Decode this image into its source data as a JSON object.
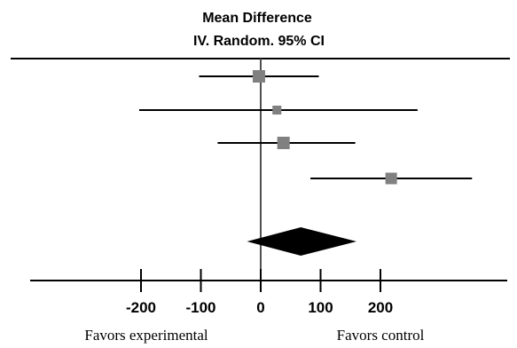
{
  "chart_data": {
    "type": "forest",
    "header_line1": "Mean Difference",
    "header_line2": "IV. Random. 95% CI",
    "xlim": [
      -260,
      340
    ],
    "ticks": [
      {
        "value": -200,
        "label": "-200"
      },
      {
        "value": -100,
        "label": "-100"
      },
      {
        "value": 0,
        "label": "0"
      },
      {
        "value": 100,
        "label": "100"
      },
      {
        "value": 200,
        "label": "200"
      }
    ],
    "studies": [
      {
        "mean": -3,
        "lower": -103,
        "upper": 97,
        "weight": "large"
      },
      {
        "mean": 27,
        "lower": -203,
        "upper": 262,
        "weight": "small"
      },
      {
        "mean": 38,
        "lower": -72,
        "upper": 158,
        "weight": "large"
      },
      {
        "mean": 218,
        "lower": 83,
        "upper": 353,
        "weight": "medium"
      }
    ],
    "pooled": {
      "mean": 67,
      "lower": -23,
      "upper": 160
    },
    "favors_left": "Favors experimental",
    "favors_right": "Favors control",
    "colors": {
      "marker": "#808080",
      "line": "#000000",
      "diamond": "#000000"
    }
  }
}
